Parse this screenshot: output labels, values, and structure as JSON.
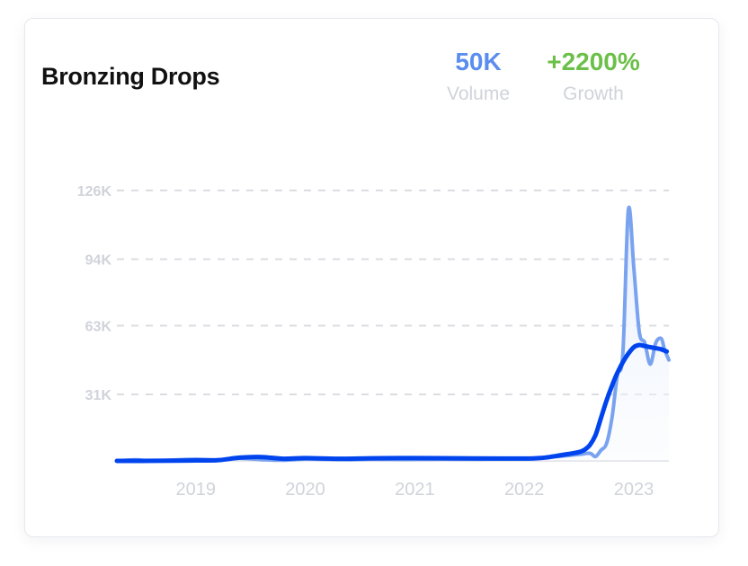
{
  "card": {
    "title": "Bronzing Drops",
    "metrics": {
      "volume": {
        "value": "50K",
        "label": "Volume",
        "color": "#5b8def"
      },
      "growth": {
        "value": "+2200%",
        "label": "Growth",
        "color": "#6cc04a"
      }
    }
  },
  "chart_data": {
    "type": "line",
    "title": "",
    "xlabel": "",
    "ylabel": "",
    "ylim": [
      0,
      126000
    ],
    "xlim": [
      2018.28,
      2023.32
    ],
    "yticks": [
      {
        "value": 126000,
        "label": "126K"
      },
      {
        "value": 94000,
        "label": "94K"
      },
      {
        "value": 63000,
        "label": "63K"
      },
      {
        "value": 31000,
        "label": "31K"
      }
    ],
    "xticks": [
      {
        "value": 2019,
        "label": "2019"
      },
      {
        "value": 2020,
        "label": "2020"
      },
      {
        "value": 2021,
        "label": "2021"
      },
      {
        "value": 2022,
        "label": "2022"
      },
      {
        "value": 2023,
        "label": "2023"
      }
    ],
    "grid": true,
    "colors": {
      "raw": "#7aa3ef",
      "trend": "#0044ee",
      "grid": "#dcdde3",
      "tick": "#d0d3da",
      "area": "#eef4fd"
    },
    "series": [
      {
        "role": "raw",
        "x": [
          2018.28,
          2018.45,
          2018.6,
          2018.8,
          2019.0,
          2019.2,
          2019.4,
          2019.6,
          2019.8,
          2020.0,
          2020.2,
          2020.4,
          2020.6,
          2020.8,
          2021.0,
          2021.2,
          2021.4,
          2021.6,
          2021.8,
          2022.0,
          2022.1,
          2022.2,
          2022.3,
          2022.4,
          2022.5,
          2022.6,
          2022.65,
          2022.7,
          2022.75,
          2022.8,
          2022.85,
          2022.9,
          2022.95,
          2023.0,
          2023.05,
          2023.1,
          2023.15,
          2023.2,
          2023.25,
          2023.28,
          2023.32
        ],
        "y": [
          0,
          500,
          0,
          400,
          800,
          500,
          1200,
          600,
          300,
          900,
          700,
          600,
          800,
          700,
          700,
          800,
          800,
          800,
          900,
          1000,
          1100,
          1500,
          2000,
          2500,
          3000,
          3500,
          2000,
          5000,
          8000,
          20000,
          40000,
          50000,
          117000,
          90000,
          60000,
          55000,
          45000,
          55000,
          57000,
          52000,
          47000
        ]
      },
      {
        "role": "trend",
        "x": [
          2018.28,
          2018.5,
          2018.8,
          2019.0,
          2019.2,
          2019.4,
          2019.6,
          2019.8,
          2020.0,
          2020.3,
          2020.6,
          2021.0,
          2021.4,
          2021.8,
          2022.0,
          2022.1,
          2022.2,
          2022.3,
          2022.4,
          2022.5,
          2022.55,
          2022.6,
          2022.65,
          2022.7,
          2022.75,
          2022.8,
          2022.85,
          2022.9,
          2022.95,
          2023.0,
          2023.05,
          2023.1,
          2023.15,
          2023.2,
          2023.25,
          2023.3
        ],
        "y": [
          0,
          0,
          100,
          200,
          300,
          1500,
          1800,
          1000,
          1300,
          1000,
          1200,
          1300,
          1200,
          1100,
          1100,
          1200,
          1600,
          2400,
          3200,
          4100,
          5200,
          7500,
          12000,
          20000,
          28000,
          35000,
          41000,
          46000,
          50000,
          53000,
          54000,
          53500,
          53000,
          52500,
          52000,
          51000
        ]
      }
    ]
  }
}
